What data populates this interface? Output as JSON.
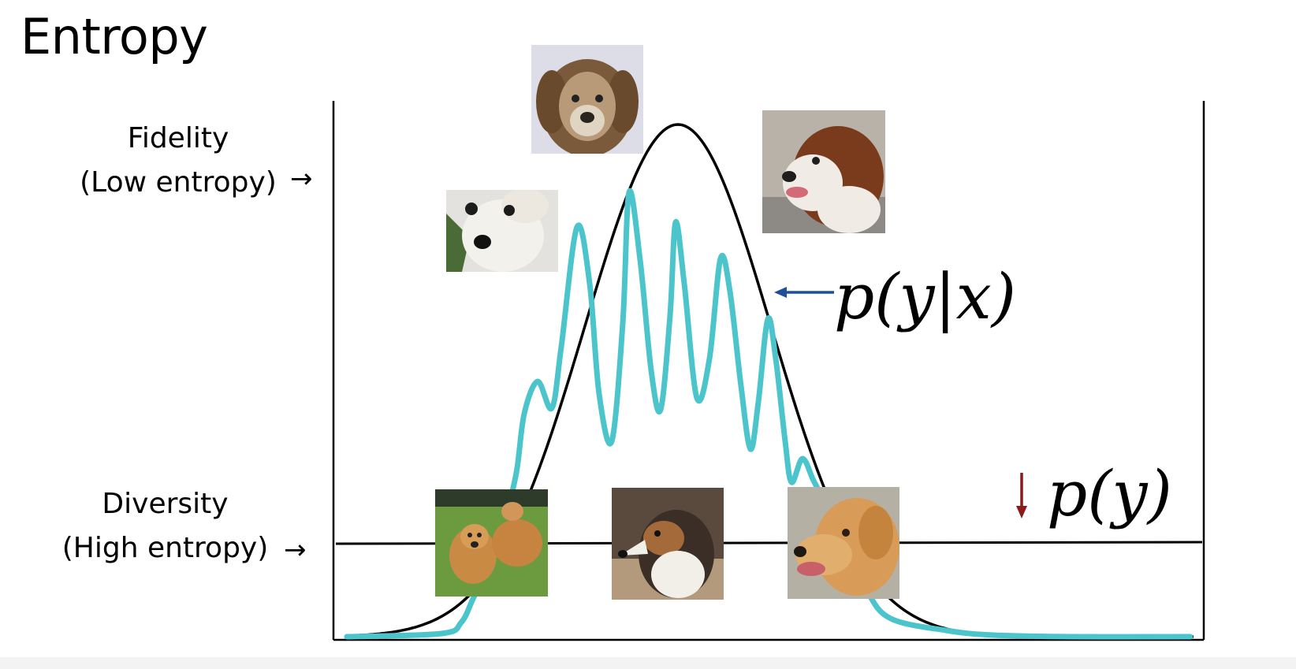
{
  "slide": {
    "title": "Entropy",
    "fidelity_label": "Fidelity",
    "fidelity_sub_label": "(Low entropy)",
    "diversity_label": "Diversity",
    "diversity_sub_label": "(High entropy)",
    "arrow_glyph": "→",
    "conditional_label": "p(y|x)",
    "marginal_label": "p(y)",
    "down_arrow_glyph": "↓"
  },
  "colors": {
    "conditional_curve": "#4bc4cc",
    "marginal_curve": "#000000",
    "pointer_arrow": "#1f4f9a",
    "down_arrow": "#8b1a1a",
    "text": "#000000"
  },
  "images": [
    {
      "name": "golden-retriever-senior-photo",
      "subject": "dog"
    },
    {
      "name": "white-dog-photo",
      "subject": "dog"
    },
    {
      "name": "saint-bernard-photo",
      "subject": "dog"
    },
    {
      "name": "two-golden-retrievers-photo",
      "subject": "dog"
    },
    {
      "name": "sheltie-photo",
      "subject": "dog"
    },
    {
      "name": "golden-retriever-profile-photo",
      "subject": "dog"
    }
  ]
}
